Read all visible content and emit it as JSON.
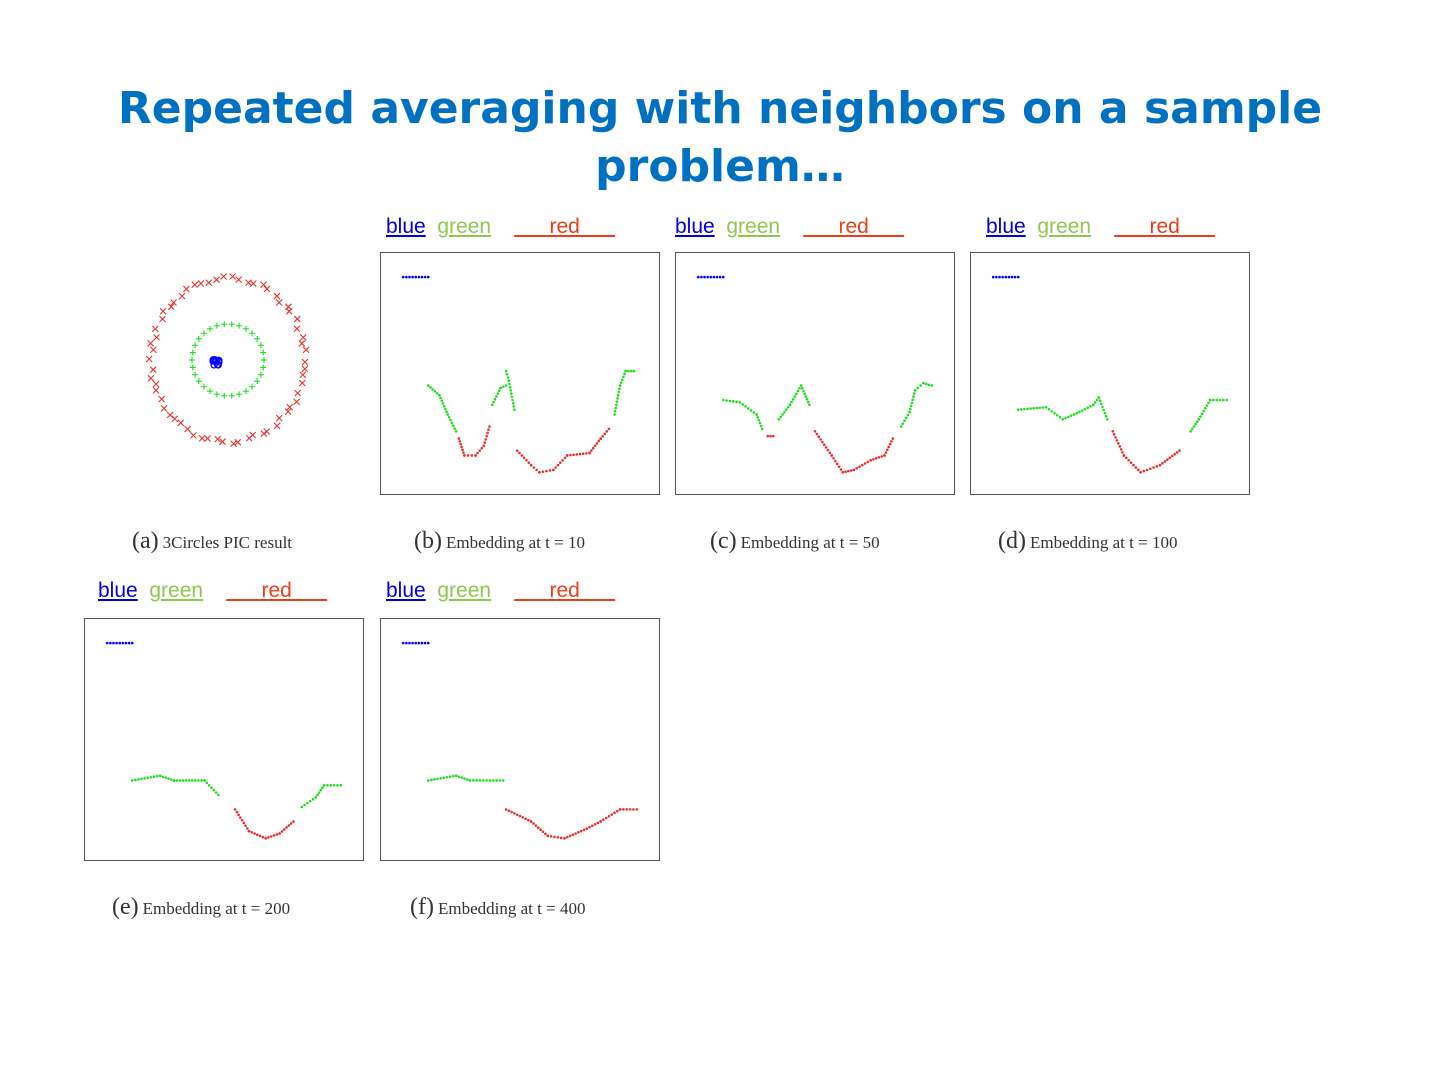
{
  "title": "Repeated averaging with neighbors on a sample problem…",
  "legend": {
    "blue": "blue",
    "green": "green",
    "red_pre": "___",
    "red": "red",
    "red_post": "___"
  },
  "colors": {
    "blue": "#0000ff",
    "green": "#22dd22",
    "red": "#e83030"
  },
  "chart_data": [
    {
      "id": "a",
      "type": "scatter",
      "letter": "(a)",
      "caption": "3Circles PIC result",
      "series": [
        {
          "name": "red",
          "marker": "x",
          "shape": "circle",
          "radius": 1.0
        },
        {
          "name": "green",
          "marker": "+",
          "shape": "circle",
          "radius": 0.45
        },
        {
          "name": "blue",
          "marker": "o",
          "shape": "cluster",
          "radius": 0.05
        }
      ]
    },
    {
      "id": "b",
      "type": "scatter",
      "letter": "(b)",
      "caption": "Embedding at t = 10",
      "xlim": [
        0,
        100
      ],
      "ylim": [
        0,
        100
      ],
      "series": [
        {
          "name": "blue",
          "segments": [
            [
              [
                8,
                90
              ],
              [
                17,
                90
              ]
            ]
          ]
        },
        {
          "name": "green",
          "segments": [
            [
              [
                17,
                45
              ],
              [
                21,
                41
              ],
              [
                24,
                33
              ],
              [
                27,
                26
              ]
            ],
            [
              [
                40,
                37
              ],
              [
                43,
                44
              ],
              [
                45,
                45
              ]
            ],
            [
              [
                45,
                51
              ],
              [
                46,
                47
              ],
              [
                48,
                35
              ]
            ],
            [
              [
                84,
                33
              ],
              [
                86,
                45
              ],
              [
                88,
                51
              ],
              [
                91,
                51
              ]
            ]
          ]
        },
        {
          "name": "red",
          "segments": [
            [
              [
                28,
                23
              ],
              [
                30,
                16
              ],
              [
                34,
                16
              ],
              [
                37,
                20
              ],
              [
                39,
                28
              ]
            ],
            [
              [
                49,
                18
              ],
              [
                54,
                12
              ],
              [
                57,
                9
              ],
              [
                62,
                10
              ],
              [
                67,
                16
              ],
              [
                75,
                17
              ],
              [
                79,
                23
              ],
              [
                82,
                27
              ]
            ]
          ]
        }
      ]
    },
    {
      "id": "c",
      "type": "scatter",
      "letter": "(c)",
      "caption": "Embedding at t = 50",
      "xlim": [
        0,
        100
      ],
      "ylim": [
        0,
        100
      ],
      "series": [
        {
          "name": "blue",
          "segments": [
            [
              [
                8,
                90
              ],
              [
                17,
                90
              ]
            ]
          ]
        },
        {
          "name": "green",
          "segments": [
            [
              [
                17,
                39
              ],
              [
                23,
                38
              ],
              [
                29,
                33
              ],
              [
                31,
                27
              ]
            ],
            [
              [
                37,
                31
              ],
              [
                41,
                37
              ],
              [
                45,
                45
              ],
              [
                48,
                37
              ]
            ],
            [
              [
                81,
                28
              ],
              [
                84,
                34
              ],
              [
                86,
                43
              ],
              [
                89,
                46
              ],
              [
                92,
                45
              ]
            ]
          ]
        },
        {
          "name": "red",
          "segments": [
            [
              [
                33,
                24
              ],
              [
                35,
                24
              ]
            ],
            [
              [
                50,
                26
              ],
              [
                56,
                16
              ],
              [
                60,
                9
              ],
              [
                64,
                10
              ],
              [
                70,
                14
              ],
              [
                75,
                16
              ],
              [
                78,
                23
              ]
            ]
          ]
        }
      ]
    },
    {
      "id": "d",
      "type": "scatter",
      "letter": "(d)",
      "caption": "Embedding at t = 100",
      "xlim": [
        0,
        100
      ],
      "ylim": [
        0,
        100
      ],
      "series": [
        {
          "name": "blue",
          "segments": [
            [
              [
                8,
                90
              ],
              [
                17,
                90
              ]
            ]
          ]
        },
        {
          "name": "green",
          "segments": [
            [
              [
                17,
                35
              ],
              [
                27,
                36
              ],
              [
                33,
                31
              ],
              [
                39,
                34
              ],
              [
                44,
                37
              ],
              [
                46,
                40
              ],
              [
                49,
                31
              ]
            ],
            [
              [
                79,
                26
              ],
              [
                82,
                31
              ],
              [
                86,
                39
              ],
              [
                92,
                39
              ]
            ]
          ]
        },
        {
          "name": "red",
          "segments": [
            [
              [
                51,
                26
              ],
              [
                55,
                16
              ],
              [
                61,
                9
              ],
              [
                68,
                12
              ],
              [
                75,
                18
              ]
            ]
          ]
        }
      ]
    },
    {
      "id": "e",
      "type": "scatter",
      "letter": "(e)",
      "caption": "Embedding at t = 200",
      "xlim": [
        0,
        100
      ],
      "ylim": [
        0,
        100
      ],
      "series": [
        {
          "name": "blue",
          "segments": [
            [
              [
                8,
                90
              ],
              [
                17,
                90
              ]
            ]
          ]
        },
        {
          "name": "green",
          "segments": [
            [
              [
                17,
                33
              ],
              [
                27,
                35
              ],
              [
                32,
                33
              ],
              [
                43,
                33
              ],
              [
                48,
                27
              ]
            ],
            [
              [
                78,
                22
              ],
              [
                83,
                26
              ],
              [
                86,
                31
              ],
              [
                92,
                31
              ]
            ]
          ]
        },
        {
          "name": "red",
          "segments": [
            [
              [
                54,
                21
              ],
              [
                59,
                12
              ],
              [
                65,
                9
              ],
              [
                70,
                11
              ],
              [
                75,
                16
              ]
            ]
          ]
        }
      ]
    },
    {
      "id": "f",
      "type": "scatter",
      "letter": "(f)",
      "caption": "Embedding at t = 400",
      "xlim": [
        0,
        100
      ],
      "ylim": [
        0,
        100
      ],
      "series": [
        {
          "name": "blue",
          "segments": [
            [
              [
                8,
                90
              ],
              [
                17,
                90
              ]
            ]
          ]
        },
        {
          "name": "green",
          "segments": [
            [
              [
                17,
                33
              ],
              [
                27,
                35
              ],
              [
                32,
                33
              ],
              [
                44,
                33
              ]
            ]
          ]
        },
        {
          "name": "red",
          "segments": [
            [
              [
                45,
                21
              ],
              [
                54,
                16
              ],
              [
                60,
                10
              ],
              [
                66,
                9
              ],
              [
                74,
                13
              ],
              [
                79,
                16
              ],
              [
                86,
                21
              ],
              [
                92,
                21
              ]
            ]
          ]
        }
      ]
    }
  ]
}
